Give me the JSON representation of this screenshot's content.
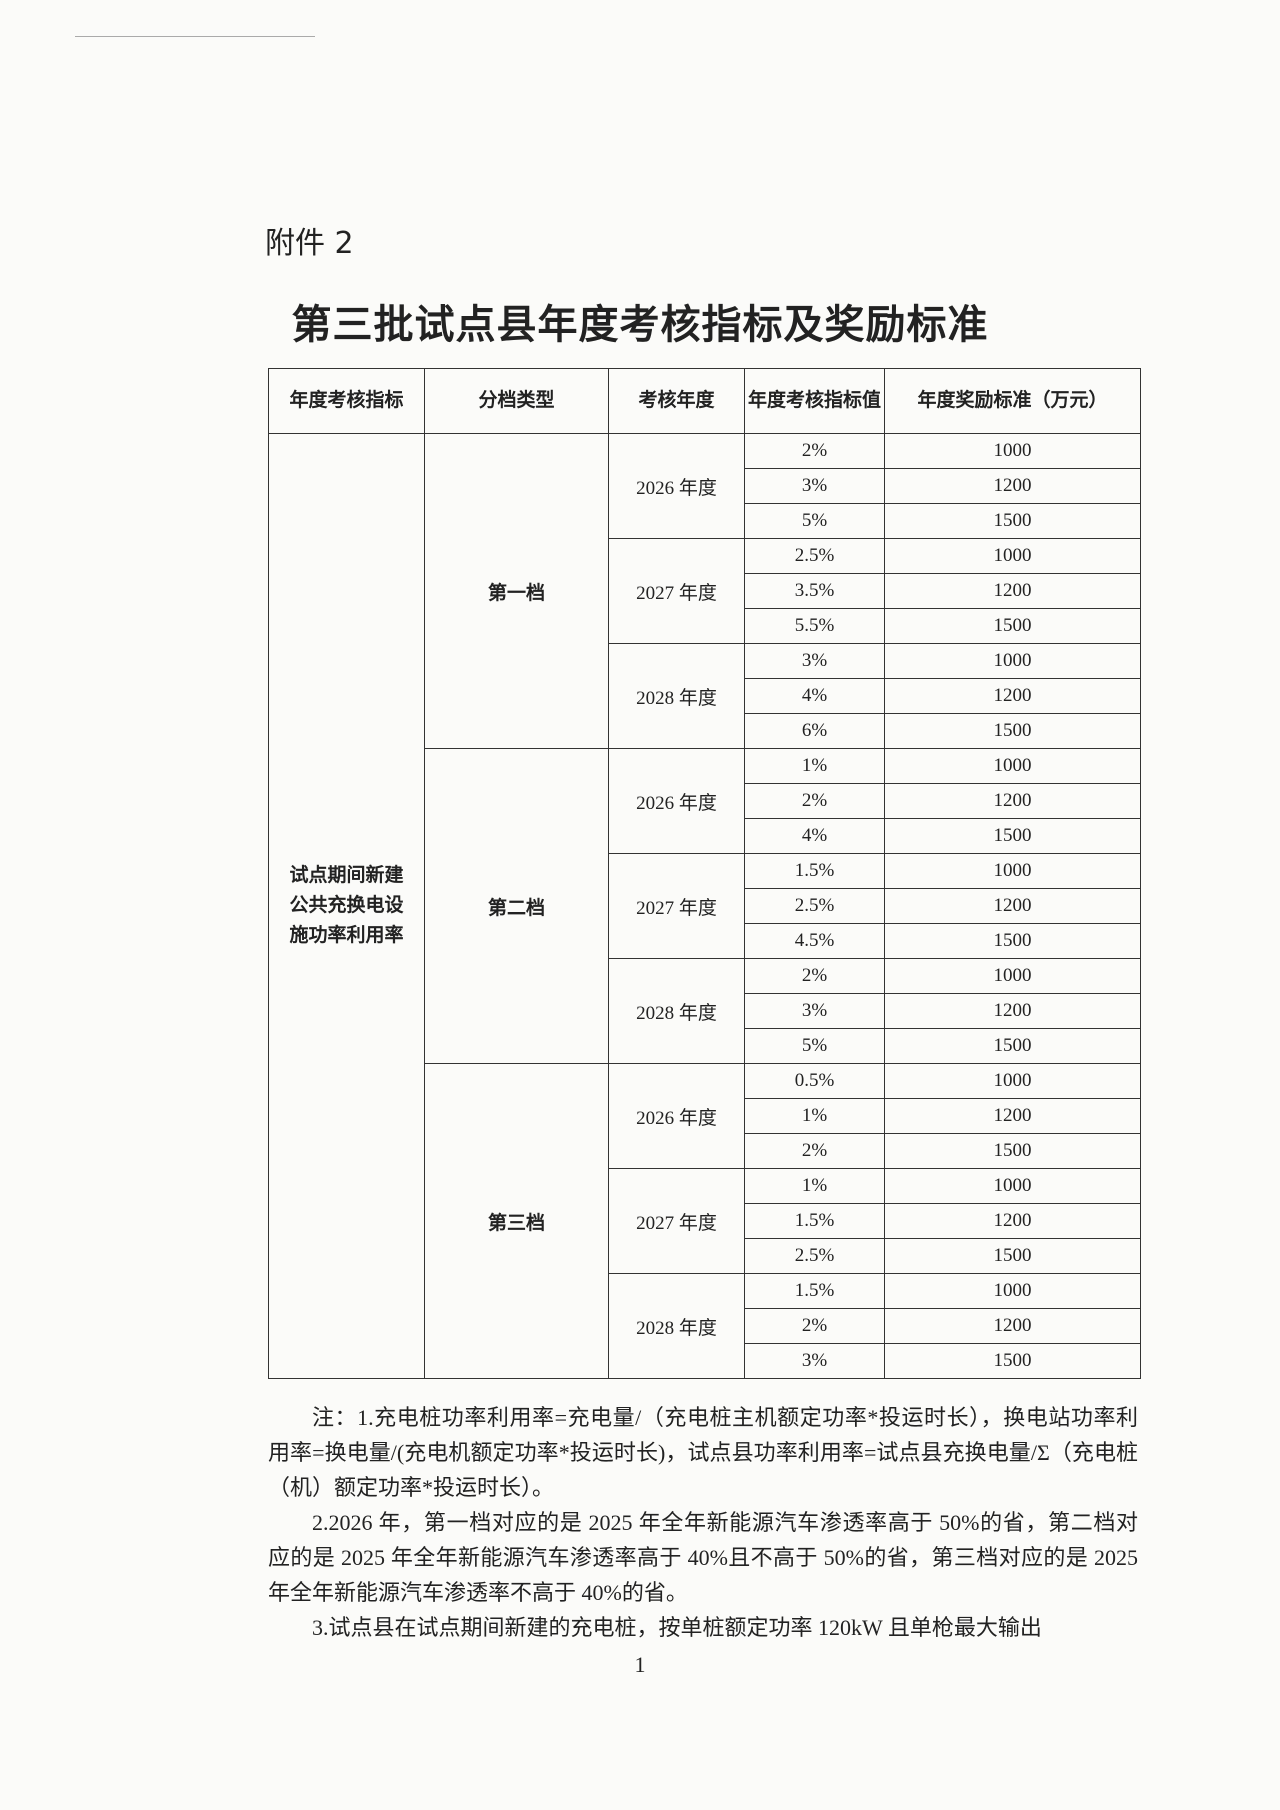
{
  "attachment_label": "附件 2",
  "title": "第三批试点县年度考核指标及奖励标准",
  "table": {
    "headers": [
      "年度考核指标",
      "分档类型",
      "考核年度",
      "年度考核指标值",
      "年度奖励标准（万元）"
    ],
    "indicator": "试点期间新建公共充换电设施功率利用率",
    "tiers": [
      {
        "name": "第一档",
        "years": [
          {
            "year": "2026 年度",
            "rows": [
              [
                "2%",
                "1000"
              ],
              [
                "3%",
                "1200"
              ],
              [
                "5%",
                "1500"
              ]
            ]
          },
          {
            "year": "2027 年度",
            "rows": [
              [
                "2.5%",
                "1000"
              ],
              [
                "3.5%",
                "1200"
              ],
              [
                "5.5%",
                "1500"
              ]
            ]
          },
          {
            "year": "2028 年度",
            "rows": [
              [
                "3%",
                "1000"
              ],
              [
                "4%",
                "1200"
              ],
              [
                "6%",
                "1500"
              ]
            ]
          }
        ]
      },
      {
        "name": "第二档",
        "years": [
          {
            "year": "2026 年度",
            "rows": [
              [
                "1%",
                "1000"
              ],
              [
                "2%",
                "1200"
              ],
              [
                "4%",
                "1500"
              ]
            ]
          },
          {
            "year": "2027 年度",
            "rows": [
              [
                "1.5%",
                "1000"
              ],
              [
                "2.5%",
                "1200"
              ],
              [
                "4.5%",
                "1500"
              ]
            ]
          },
          {
            "year": "2028 年度",
            "rows": [
              [
                "2%",
                "1000"
              ],
              [
                "3%",
                "1200"
              ],
              [
                "5%",
                "1500"
              ]
            ]
          }
        ]
      },
      {
        "name": "第三档",
        "years": [
          {
            "year": "2026 年度",
            "rows": [
              [
                "0.5%",
                "1000"
              ],
              [
                "1%",
                "1200"
              ],
              [
                "2%",
                "1500"
              ]
            ]
          },
          {
            "year": "2027 年度",
            "rows": [
              [
                "1%",
                "1000"
              ],
              [
                "1.5%",
                "1200"
              ],
              [
                "2.5%",
                "1500"
              ]
            ]
          },
          {
            "year": "2028 年度",
            "rows": [
              [
                "1.5%",
                "1000"
              ],
              [
                "2%",
                "1200"
              ],
              [
                "3%",
                "1500"
              ]
            ]
          }
        ]
      }
    ]
  },
  "notes": [
    "注：1.充电桩功率利用率=充电量/（充电桩主机额定功率*投运时长），换电站功率利用率=换电量/(充电机额定功率*投运时长)，试点县功率利用率=试点县充换电量/Σ（充电桩（机）额定功率*投运时长）。",
    "2.2026 年，第一档对应的是 2025 年全年新能源汽车渗透率高于 50%的省，第二档对应的是 2025 年全年新能源汽车渗透率高于 40%且不高于 50%的省，第三档对应的是 2025 年全年新能源汽车渗透率不高于 40%的省。",
    "3.试点县在试点期间新建的充电桩，按单桩额定功率 120kW 且单枪最大输出"
  ],
  "page_number": "1"
}
